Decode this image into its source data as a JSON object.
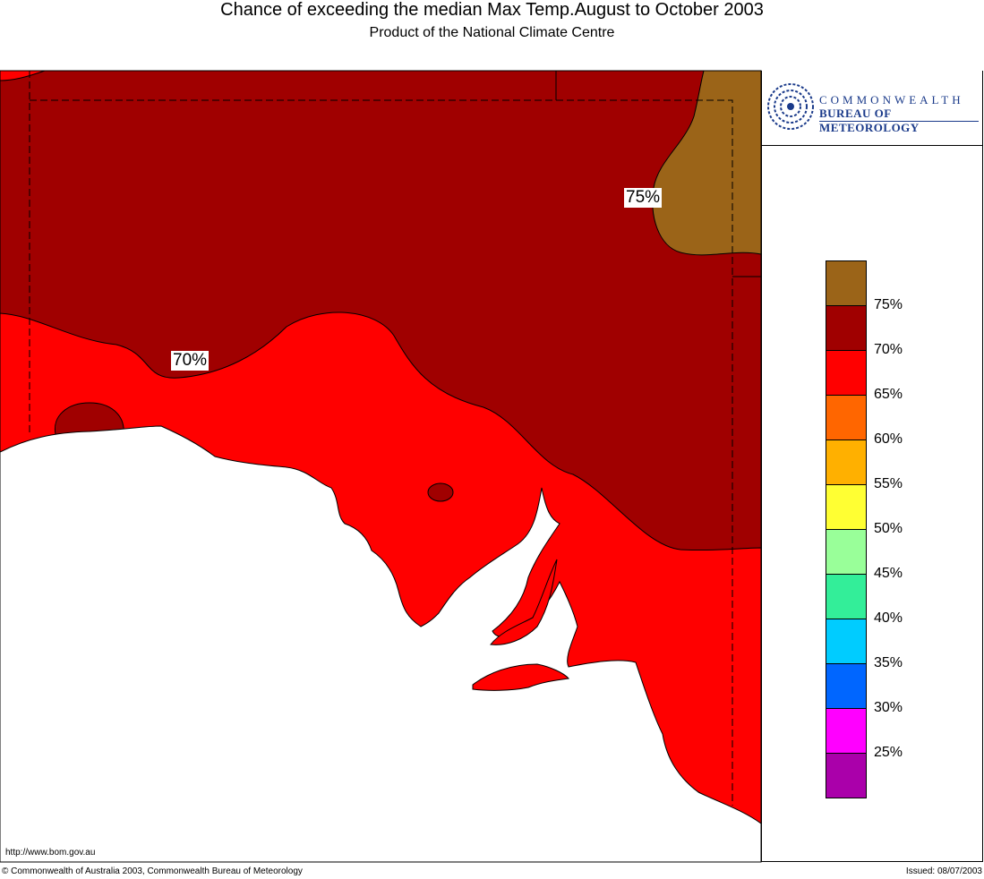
{
  "header": {
    "title": "Chance of exceeding the median Max Temp.August to October 2003",
    "subtitle": "Product of the National Climate Centre"
  },
  "logo": {
    "line1": "COMMONWEALTH",
    "line2": "BUREAU OF METEOROLOGY"
  },
  "map_labels": {
    "contour_75": "75%",
    "contour_70": "70%"
  },
  "legend": {
    "colors": [
      "#9b6418",
      "#a00000",
      "#ff0000",
      "#ff6600",
      "#ffb000",
      "#ffff33",
      "#99ff99",
      "#33ee99",
      "#00ccff",
      "#0066ff",
      "#ff00ff",
      "#aa00aa"
    ],
    "labels": [
      "75%",
      "70%",
      "65%",
      "60%",
      "55%",
      "50%",
      "45%",
      "40%",
      "35%",
      "30%",
      "25%"
    ]
  },
  "footer": {
    "url": "http://www.bom.gov.au",
    "copyright": "© Commonwealth of Australia 2003, Commonwealth Bureau of Meteorology",
    "issued": "Issued: 08/07/2003"
  },
  "colors": {
    "dark_red": "#a00000",
    "red": "#ff0000",
    "brown": "#9b6418",
    "sea": "#ffffff"
  }
}
